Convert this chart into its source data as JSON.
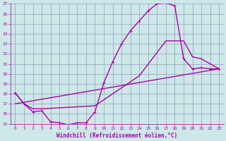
{
  "xlabel": "Windchill (Refroidissement éolien,°C)",
  "bg_color": "#cce8e8",
  "grid_color": "#aaccaa",
  "line_color": "#aa00aa",
  "xlim": [
    -0.5,
    23.5
  ],
  "ylim": [
    15,
    27
  ],
  "xticks": [
    0,
    1,
    2,
    3,
    4,
    5,
    6,
    7,
    8,
    9,
    10,
    11,
    12,
    13,
    14,
    15,
    16,
    17,
    18,
    19,
    20,
    21,
    22,
    23
  ],
  "yticks": [
    15,
    16,
    17,
    18,
    19,
    20,
    21,
    22,
    23,
    24,
    25,
    26,
    27
  ],
  "curve1_x": [
    0,
    1,
    2,
    3,
    4,
    5,
    6,
    7,
    8,
    9,
    10,
    11,
    12,
    13,
    14,
    15,
    16,
    17,
    18,
    19,
    20,
    21,
    22,
    23
  ],
  "curve1_y": [
    18.1,
    17.0,
    16.2,
    16.3,
    15.2,
    15.1,
    14.9,
    15.1,
    15.1,
    16.2,
    19.1,
    21.2,
    23.0,
    24.3,
    25.3,
    26.3,
    27.0,
    27.1,
    26.8,
    21.5,
    20.5,
    20.6,
    20.5,
    20.5
  ],
  "curve2_x": [
    0,
    23
  ],
  "curve2_y": [
    17.0,
    20.5
  ],
  "curve3_x": [
    0,
    1,
    2,
    3,
    9,
    14,
    17,
    19,
    20,
    21,
    22,
    23
  ],
  "curve3_y": [
    18.1,
    17.0,
    16.5,
    16.5,
    16.8,
    19.8,
    23.3,
    23.3,
    21.7,
    21.5,
    21.0,
    20.5
  ],
  "marker_size": 3.5,
  "line_width": 1.0
}
